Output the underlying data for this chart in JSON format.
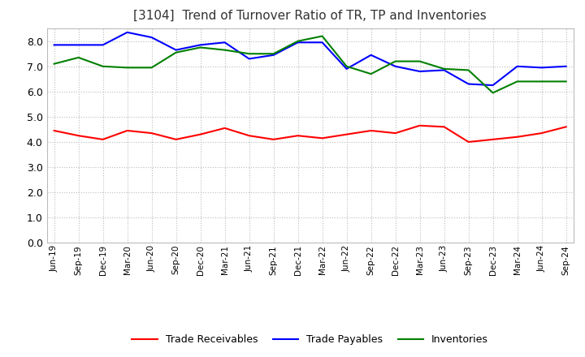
{
  "title": "[3104]  Trend of Turnover Ratio of TR, TP and Inventories",
  "labels": [
    "Jun-19",
    "Sep-19",
    "Dec-19",
    "Mar-20",
    "Jun-20",
    "Sep-20",
    "Dec-20",
    "Mar-21",
    "Jun-21",
    "Sep-21",
    "Dec-21",
    "Mar-22",
    "Jun-22",
    "Sep-22",
    "Dec-22",
    "Mar-23",
    "Jun-23",
    "Sep-23",
    "Dec-23",
    "Mar-24",
    "Jun-24",
    "Sep-24"
  ],
  "trade_receivables": [
    4.45,
    4.25,
    4.1,
    4.45,
    4.35,
    4.1,
    4.3,
    4.55,
    4.25,
    4.1,
    4.25,
    4.15,
    4.3,
    4.45,
    4.35,
    4.65,
    4.6,
    4.0,
    4.1,
    4.2,
    4.35,
    4.6
  ],
  "trade_payables": [
    7.85,
    7.85,
    7.85,
    8.35,
    8.15,
    7.65,
    7.85,
    7.95,
    7.3,
    7.45,
    7.95,
    7.95,
    6.9,
    7.45,
    7.0,
    6.8,
    6.85,
    6.3,
    6.25,
    7.0,
    6.95,
    7.0
  ],
  "inventories": [
    7.1,
    7.35,
    7.0,
    6.95,
    6.95,
    7.55,
    7.75,
    7.65,
    7.5,
    7.5,
    8.0,
    8.2,
    7.0,
    6.7,
    7.2,
    7.2,
    6.9,
    6.85,
    5.95,
    6.4,
    6.4,
    6.4
  ],
  "tr_color": "#ff0000",
  "tp_color": "#0000ff",
  "inv_color": "#008000",
  "ylim": [
    0.0,
    8.5
  ],
  "yticks": [
    0.0,
    1.0,
    2.0,
    3.0,
    4.0,
    5.0,
    6.0,
    7.0,
    8.0
  ],
  "background_color": "#ffffff",
  "grid_color": "#aaaaaa",
  "legend_labels": [
    "Trade Receivables",
    "Trade Payables",
    "Inventories"
  ]
}
